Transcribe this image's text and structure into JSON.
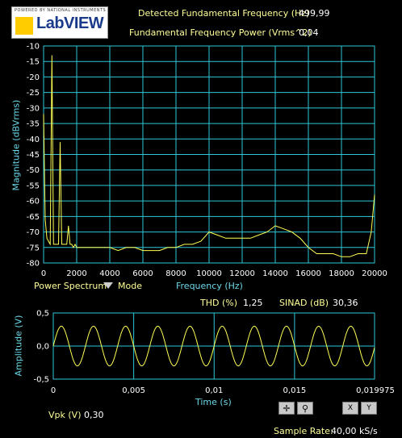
{
  "logo": {
    "small_text": "POWERED BY NATIONAL INSTRUMENTS",
    "text": "LabVIEW"
  },
  "indicators": {
    "fund_freq_label": "Detected Fundamental Frequency (Hz)",
    "fund_freq_value": "499,99",
    "fund_power_label": "Fundamental Frequency Power (Vrms^2)",
    "fund_power_value": "0,04",
    "thd_label": "THD (%)",
    "thd_value": "1,25",
    "sinad_label": "SINAD (dB)",
    "sinad_value": "30,36",
    "vpk_label": "Vpk (V)",
    "vpk_value": "0,30",
    "sample_rate_label": "Sample Rate:",
    "sample_rate_value": "40,00 kS/s"
  },
  "spectrum_controls": {
    "mode_value": "Power Spectrum",
    "mode_label": "Mode"
  },
  "colors": {
    "grid": "#2ec8d8",
    "trace": "#ffff55",
    "text_yellow": "#ffff99",
    "axis_label": "#6ad8e8"
  },
  "chart_data": [
    {
      "type": "line",
      "title": "",
      "xlabel": "Frequency (Hz)",
      "ylabel": "Magnitude (dBVrms)",
      "xlim": [
        0,
        20000
      ],
      "ylim": [
        -80,
        -10
      ],
      "x_ticks": [
        "0",
        "2000",
        "4000",
        "6000",
        "8000",
        "10000",
        "12000",
        "14000",
        "16000",
        "18000",
        "20000"
      ],
      "y_ticks": [
        "-10",
        "-15",
        "-20",
        "-25",
        "-30",
        "-35",
        "-40",
        "-45",
        "-50",
        "-55",
        "-60",
        "-65",
        "-70",
        "-75",
        "-80"
      ],
      "grid": true,
      "x": [
        0,
        100,
        200,
        300,
        400,
        500,
        600,
        700,
        800,
        900,
        1000,
        1100,
        1200,
        1300,
        1400,
        1500,
        1600,
        1700,
        1800,
        1900,
        2000,
        2500,
        3000,
        3500,
        4000,
        4500,
        5000,
        5500,
        6000,
        6500,
        7000,
        7500,
        8000,
        8500,
        9000,
        9500,
        10000,
        10500,
        11000,
        11500,
        12000,
        12500,
        13000,
        13500,
        14000,
        14500,
        15000,
        15500,
        16000,
        16500,
        17000,
        17500,
        18000,
        18500,
        19000,
        19500,
        19800,
        20000
      ],
      "y": [
        -32,
        -66,
        -72,
        -73,
        -74,
        -13,
        -74,
        -74,
        -74,
        -74,
        -41,
        -74,
        -74,
        -74,
        -74,
        -68,
        -74,
        -74,
        -75,
        -74,
        -75,
        -75,
        -75,
        -75,
        -75,
        -76,
        -75,
        -75,
        -76,
        -76,
        -76,
        -75,
        -75,
        -74,
        -74,
        -73,
        -70,
        -71,
        -72,
        -72,
        -72,
        -72,
        -71,
        -70,
        -68,
        -69,
        -70,
        -72,
        -75,
        -77,
        -77,
        -77,
        -78,
        -78,
        -77,
        -77,
        -70,
        -58
      ]
    },
    {
      "type": "line",
      "title": "",
      "xlabel": "Time (s)",
      "ylabel": "Amplitude (V)",
      "xlim": [
        0,
        0.019975
      ],
      "ylim": [
        -0.5,
        0.5
      ],
      "x_ticks": [
        "0",
        "0,005",
        "0,01",
        "0,015",
        "0,019975"
      ],
      "y_ticks": [
        "0,5",
        "0,0",
        "-0,5"
      ],
      "grid": true,
      "signal": {
        "amplitude_v": 0.3,
        "frequency_hz": 500
      }
    }
  ]
}
